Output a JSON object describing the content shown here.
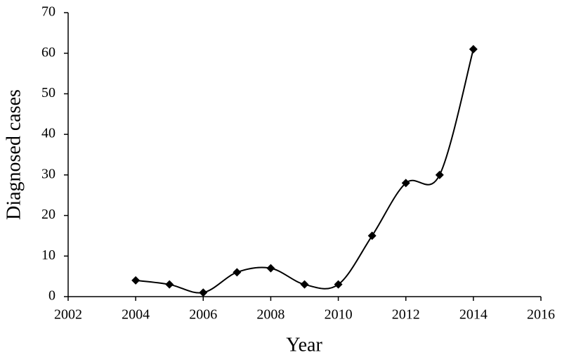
{
  "chart_data": {
    "type": "line",
    "x_label": "Year",
    "y_label": "Diagnosed cases",
    "x": [
      2004,
      2005,
      2006,
      2007,
      2008,
      2009,
      2010,
      2011,
      2012,
      2013,
      2014
    ],
    "series": [
      {
        "color": "#000000",
        "values": [
          4,
          3,
          1,
          6,
          7,
          3,
          3,
          15,
          28,
          30,
          61
        ]
      }
    ],
    "xlim": [
      2002,
      2016
    ],
    "xticks": [
      2002,
      2004,
      2006,
      2008,
      2010,
      2012,
      2014,
      2016
    ],
    "ylim": [
      0,
      70
    ],
    "yticks": [
      0,
      10,
      20,
      30,
      40,
      50,
      60,
      70
    ],
    "smooth": true,
    "marker": "diamond",
    "grid": false
  }
}
